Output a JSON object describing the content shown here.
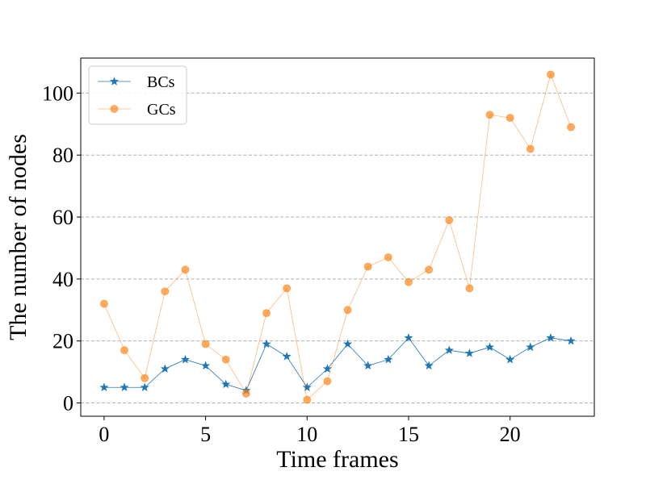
{
  "chart_data": {
    "type": "line",
    "title": "",
    "xlabel": "Time frames",
    "ylabel": "The number of nodes",
    "xlim": [
      -1.15,
      24.15
    ],
    "ylim": [
      -4.3,
      111.3
    ],
    "xticks": [
      0,
      5,
      10,
      15,
      20
    ],
    "yticks": [
      0,
      20,
      40,
      60,
      80,
      100
    ],
    "grid": "y-dashed",
    "legend_position": "top-left",
    "x": [
      0,
      1,
      2,
      3,
      4,
      5,
      6,
      7,
      8,
      9,
      10,
      11,
      12,
      13,
      14,
      15,
      16,
      17,
      18,
      19,
      20,
      21,
      22,
      23
    ],
    "series": [
      {
        "name": "BCs",
        "marker": "star",
        "color": "#1f77b4",
        "values": [
          5,
          5,
          5,
          11,
          14,
          12,
          6,
          4,
          19,
          15,
          5,
          11,
          19,
          12,
          14,
          21,
          12,
          17,
          16,
          18,
          14,
          18,
          21,
          20
        ]
      },
      {
        "name": "GCs",
        "marker": "circle",
        "color": "#ff7f0e",
        "values": [
          32,
          17,
          8,
          36,
          43,
          19,
          14,
          3,
          29,
          37,
          1,
          7,
          30,
          44,
          47,
          39,
          43,
          59,
          37,
          93,
          92,
          82,
          106,
          89
        ]
      }
    ]
  }
}
